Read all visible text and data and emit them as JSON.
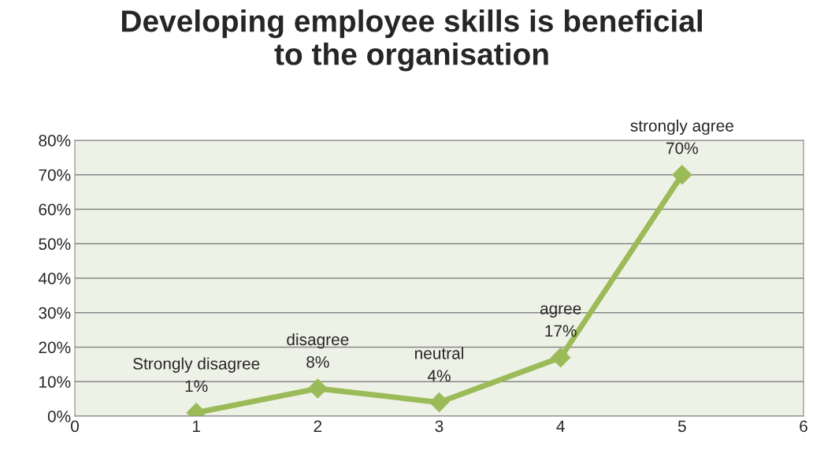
{
  "chart_data": {
    "type": "line",
    "title": "Developing employee skills is beneficial\nto the organisation",
    "x": [
      1,
      2,
      3,
      4,
      5
    ],
    "series": [
      {
        "color": "#9bbb59",
        "values": [
          1,
          8,
          4,
          17,
          70
        ],
        "value_labels": [
          "Strongly disagree\n1%",
          "disagree\n8%",
          "neutral\n4%",
          "agree\n17%",
          "strongly agree\n70%"
        ]
      }
    ],
    "xlim": [
      0,
      6
    ],
    "xticks": [
      0,
      1,
      2,
      3,
      4,
      5,
      6
    ],
    "ylim": [
      0,
      80
    ],
    "yticks": [
      {
        "value": 0,
        "label": "0%"
      },
      {
        "value": 10,
        "label": "10%"
      },
      {
        "value": 20,
        "label": "20%"
      },
      {
        "value": 30,
        "label": "30%"
      },
      {
        "value": 40,
        "label": "40%"
      },
      {
        "value": 50,
        "label": "50%"
      },
      {
        "value": 60,
        "label": "60%"
      },
      {
        "value": 70,
        "label": "70%"
      },
      {
        "value": 80,
        "label": "80%"
      }
    ],
    "grid": "y",
    "marker": "diamond",
    "line_style": "solid",
    "legend": false
  }
}
